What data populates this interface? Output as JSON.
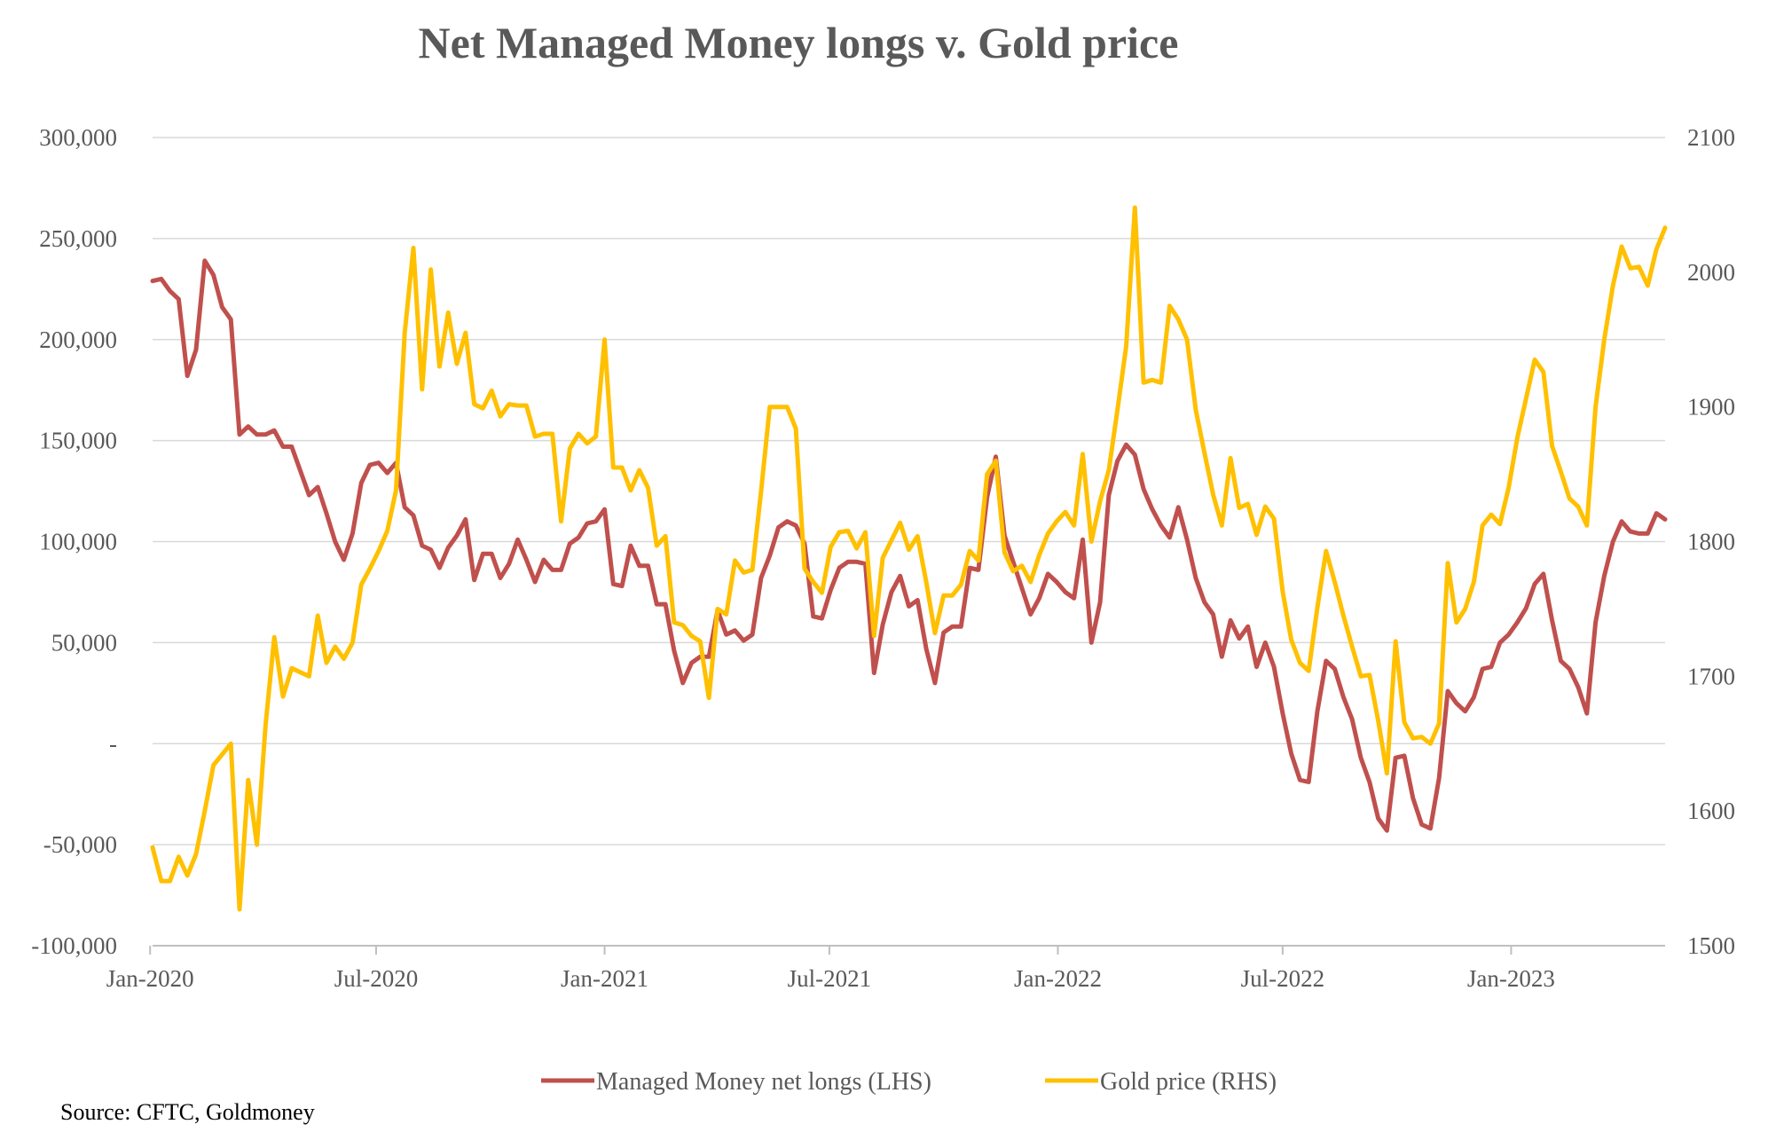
{
  "chart_data": {
    "type": "line",
    "title": "Net Managed Money longs v. Gold price",
    "source": "Source: CFTC, Goldmoney",
    "x_start": "2020-01-03",
    "x_interval_days": 7,
    "x_tick_labels": [
      "Jan-2020",
      "Jul-2020",
      "Jan-2021",
      "Jul-2021",
      "Jan-2022",
      "Jul-2022",
      "Jan-2023"
    ],
    "y_left": {
      "ylim": [
        -100000,
        300000
      ],
      "ticks": [
        -100000,
        -50000,
        0,
        50000,
        100000,
        150000,
        200000,
        250000,
        300000
      ],
      "tick_labels": [
        "-100,000",
        "-50,000",
        "-",
        "50,000",
        "100,000",
        "150,000",
        "200,000",
        "250,000",
        "300,000"
      ]
    },
    "y_right": {
      "ylim": [
        1500,
        2100
      ],
      "ticks": [
        1500,
        1600,
        1700,
        1800,
        1900,
        2000,
        2100
      ],
      "tick_labels": [
        "1500",
        "1600",
        "1700",
        "1800",
        "1900",
        "2000",
        "2100"
      ]
    },
    "grid": true,
    "legend_position": "bottom",
    "series": [
      {
        "name": "Managed Money net longs (LHS)",
        "axis": "left",
        "color": "#C0504D",
        "values": [
          229000,
          230000,
          224000,
          220000,
          182000,
          195000,
          239000,
          232000,
          216000,
          210000,
          153000,
          157000,
          153000,
          153000,
          155000,
          147000,
          147000,
          135000,
          123000,
          127000,
          114000,
          100000,
          91000,
          104000,
          129000,
          138000,
          139000,
          134000,
          139000,
          117000,
          113000,
          98000,
          96000,
          87000,
          97000,
          103000,
          111000,
          81000,
          94000,
          94000,
          82000,
          89000,
          101000,
          91000,
          80000,
          91000,
          86000,
          86000,
          99000,
          102000,
          109000,
          110000,
          116000,
          79000,
          78000,
          98000,
          88000,
          88000,
          69000,
          69000,
          46000,
          30000,
          40000,
          43000,
          43000,
          66000,
          54000,
          56000,
          51000,
          54000,
          82000,
          93000,
          107000,
          110000,
          108000,
          99000,
          63000,
          62000,
          76000,
          87000,
          90000,
          90000,
          89000,
          35000,
          59000,
          75000,
          83000,
          68000,
          71000,
          47000,
          30000,
          55000,
          58000,
          58000,
          87000,
          86000,
          122000,
          142000,
          103000,
          90000,
          77000,
          64000,
          72000,
          84000,
          80000,
          75000,
          72000,
          101000,
          50000,
          70000,
          123000,
          140000,
          148000,
          143000,
          126000,
          116000,
          108000,
          102000,
          117000,
          101000,
          82000,
          70000,
          64000,
          43000,
          61000,
          52000,
          58000,
          38000,
          50000,
          38000,
          15000,
          -5000,
          -18000,
          -19000,
          16000,
          41000,
          37000,
          23000,
          12000,
          -7000,
          -19000,
          -37000,
          -43000,
          -7000,
          -6000,
          -27000,
          -40000,
          -42000,
          -17000,
          26000,
          20000,
          16000,
          23000,
          37000,
          38000,
          50000,
          54000,
          60000,
          67000,
          79000,
          84000,
          61000,
          41000,
          37000,
          28000,
          15000,
          60000,
          83000,
          100000,
          110000,
          105000,
          104000,
          104000,
          114000,
          111000
        ]
      },
      {
        "name": "Gold price (RHS)",
        "axis": "right",
        "color": "#FFC000",
        "values": [
          1573,
          1548,
          1548,
          1566,
          1552,
          1568,
          1600,
          1634,
          1642,
          1650,
          1527,
          1623,
          1575,
          1664,
          1729,
          1685,
          1706,
          1703,
          1700,
          1745,
          1710,
          1722,
          1713,
          1725,
          1768,
          1780,
          1793,
          1808,
          1838,
          1955,
          2018,
          1913,
          2002,
          1930,
          1970,
          1932,
          1955,
          1902,
          1899,
          1912,
          1893,
          1902,
          1901,
          1901,
          1878,
          1880,
          1880,
          1815,
          1869,
          1880,
          1873,
          1878,
          1950,
          1855,
          1855,
          1838,
          1853,
          1840,
          1797,
          1804,
          1740,
          1738,
          1730,
          1726,
          1684,
          1750,
          1746,
          1786,
          1777,
          1779,
          1837,
          1900,
          1900,
          1900,
          1884,
          1780,
          1770,
          1762,
          1796,
          1807,
          1808,
          1795,
          1807,
          1730,
          1788,
          1801,
          1814,
          1794,
          1804,
          1770,
          1732,
          1760,
          1760,
          1768,
          1793,
          1786,
          1850,
          1860,
          1792,
          1778,
          1782,
          1770,
          1790,
          1806,
          1815,
          1822,
          1812,
          1865,
          1800,
          1830,
          1853,
          1898,
          1945,
          2048,
          1918,
          1920,
          1918,
          1975,
          1965,
          1950,
          1898,
          1866,
          1835,
          1812,
          1862,
          1825,
          1828,
          1805,
          1826,
          1817,
          1763,
          1727,
          1710,
          1704,
          1751,
          1793,
          1770,
          1745,
          1722,
          1700,
          1701,
          1667,
          1628,
          1726,
          1666,
          1654,
          1655,
          1650,
          1665,
          1784,
          1740,
          1750,
          1770,
          1812,
          1820,
          1813,
          1840,
          1877,
          1906,
          1935,
          1926,
          1871,
          1852,
          1832,
          1826,
          1812,
          1900,
          1950,
          1990,
          2019,
          2003,
          2004,
          1990,
          2017,
          2033
        ]
      }
    ]
  }
}
